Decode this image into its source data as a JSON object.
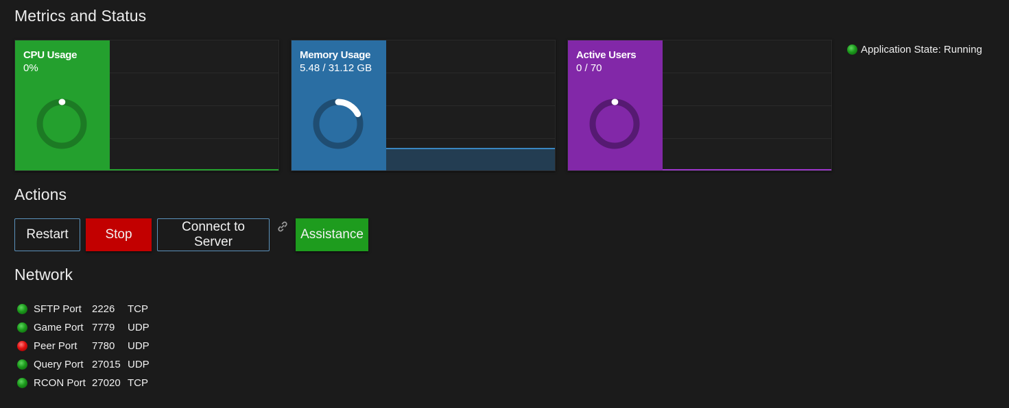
{
  "sections": {
    "metrics_title": "Metrics and Status",
    "actions_title": "Actions",
    "network_title": "Network"
  },
  "metrics": [
    {
      "title": "CPU Usage",
      "value": "0%",
      "fraction": 0.0,
      "color": "#24a02e",
      "ring_color": "#1c7a24",
      "line_color": "#24a02e"
    },
    {
      "title": "Memory Usage",
      "value": "5.48 / 31.12 GB",
      "fraction": 0.176,
      "color": "#2a6ea3",
      "ring_color": "#1f4d72",
      "line_color": "#3a86c2"
    },
    {
      "title": "Active Users",
      "value": "0 / 70",
      "fraction": 0.0,
      "color": "#8228a8",
      "ring_color": "#561a72",
      "line_color": "#9a35c8"
    }
  ],
  "app_state": {
    "label": "Application State: Running",
    "status": "green"
  },
  "actions": {
    "restart": "Restart",
    "stop": "Stop",
    "connect": "Connect to Server",
    "assistance": "Assistance"
  },
  "ports": [
    {
      "name": "SFTP Port",
      "port": "2226",
      "protocol": "TCP",
      "status": "green"
    },
    {
      "name": "Game Port",
      "port": "7779",
      "protocol": "UDP",
      "status": "green"
    },
    {
      "name": "Peer Port",
      "port": "7780",
      "protocol": "UDP",
      "status": "red"
    },
    {
      "name": "Query Port",
      "port": "27015",
      "protocol": "UDP",
      "status": "green"
    },
    {
      "name": "RCON Port",
      "port": "27020",
      "protocol": "TCP",
      "status": "green"
    }
  ]
}
